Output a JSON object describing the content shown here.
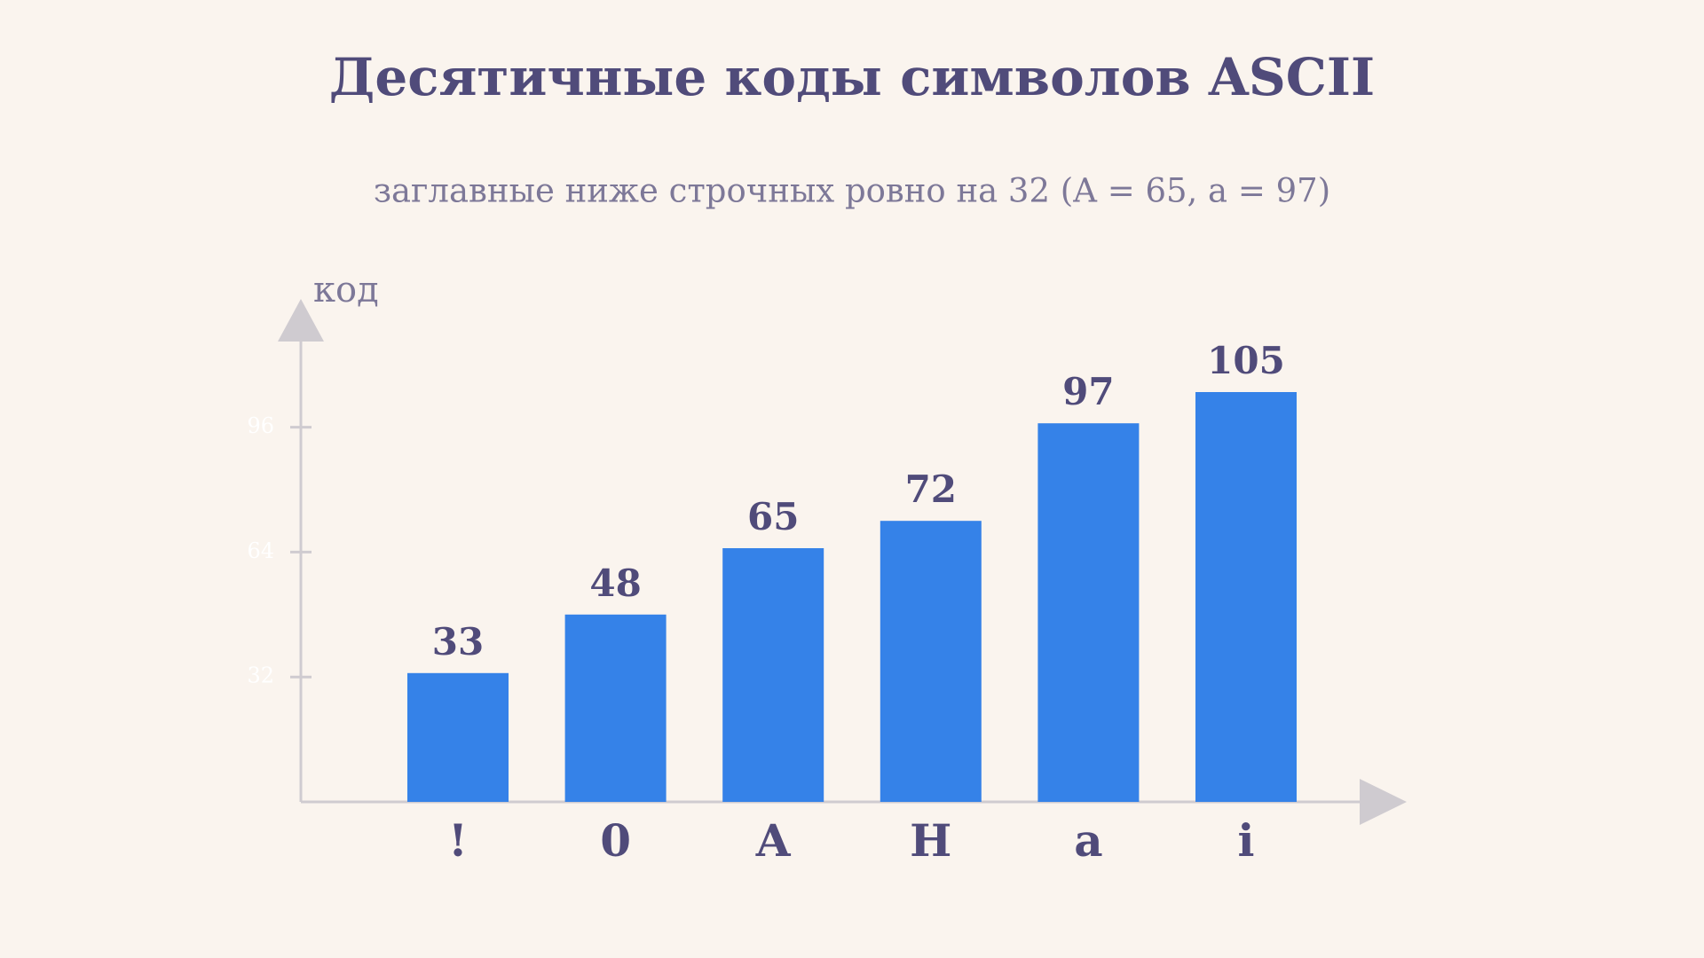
{
  "chart_data": {
    "type": "bar",
    "title": "Десятичные коды символов ASCII",
    "subtitle": "заглавные ниже строчных ровно на 32 (A = 65, a = 97)",
    "y_label": "код",
    "categories": [
      "!",
      "0",
      "A",
      "H",
      "a",
      "i"
    ],
    "values": [
      33,
      48,
      65,
      72,
      97,
      105
    ],
    "color": "#3582e8",
    "ylim": [
      0,
      120
    ],
    "yticks": [
      32,
      64,
      96
    ]
  }
}
